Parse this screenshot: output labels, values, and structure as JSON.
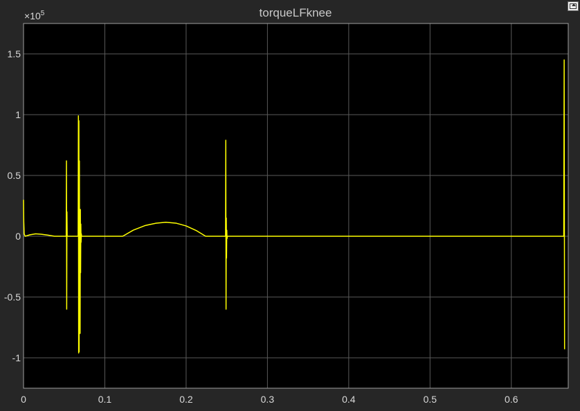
{
  "chart_data": {
    "type": "line",
    "title": "torqueLFknee",
    "xlabel": "",
    "ylabel": "",
    "y_exponent": "10",
    "y_exponent_power": "5",
    "y_exponent_prefix": "×",
    "xlim": [
      0,
      0.67
    ],
    "ylim": [
      -1.25,
      1.75
    ],
    "x_ticks": [
      0,
      0.1,
      0.2,
      0.3,
      0.4,
      0.5,
      0.6
    ],
    "x_tick_labels": [
      "0",
      "0.1",
      "0.2",
      "0.3",
      "0.4",
      "0.5",
      "0.6"
    ],
    "y_ticks": [
      -1,
      -0.5,
      0,
      0.5,
      1,
      1.5
    ],
    "y_tick_labels": [
      "-1",
      "-0.5",
      "0",
      "0.5",
      "1",
      "1.5"
    ],
    "grid": true,
    "colors": {
      "line": "#ffff00",
      "background": "#000000",
      "grid": "#5a5a5a",
      "figure": "#262626"
    },
    "series": [
      {
        "x": [
          0,
          0.0003,
          0.0008,
          0.002,
          0.008,
          0.015,
          0.022,
          0.03,
          0.038,
          0.042,
          0.0525,
          0.0528,
          0.0531,
          0.0534,
          0.0537,
          0.0545,
          0.0672,
          0.0675,
          0.0678,
          0.0681,
          0.0684,
          0.0687,
          0.069,
          0.0693,
          0.0696,
          0.0699,
          0.0702,
          0.0705,
          0.0708,
          0.0711,
          0.0714,
          0.072,
          0.122,
          0.135,
          0.15,
          0.163,
          0.175,
          0.188,
          0.2,
          0.213,
          0.224,
          0.2485,
          0.2488,
          0.2491,
          0.2494,
          0.2497,
          0.25,
          0.2503,
          0.2508,
          0.3,
          0.4,
          0.5,
          0.6,
          0.664,
          0.6645,
          0.665,
          0.6655
        ],
        "values": [
          0.3,
          0.12,
          0.02,
          0,
          0.012,
          0.02,
          0.016,
          0.009,
          0,
          0,
          0,
          0.62,
          -0.6,
          0.2,
          0,
          0,
          0,
          0.99,
          -0.96,
          0.95,
          -0.95,
          0.62,
          -0.52,
          0.22,
          -0.8,
          0.22,
          -0.3,
          0.1,
          -0.05,
          0.02,
          0,
          0,
          0,
          0.05,
          0.089,
          0.107,
          0.115,
          0.107,
          0.085,
          0.045,
          0,
          0,
          0.79,
          -0.6,
          0.15,
          -0.18,
          0.05,
          -0.02,
          0,
          0,
          0,
          0,
          0,
          0,
          0,
          1.45,
          -0.93
        ]
      }
    ]
  },
  "toolbar": {
    "dock_icon": "undock-icon"
  }
}
